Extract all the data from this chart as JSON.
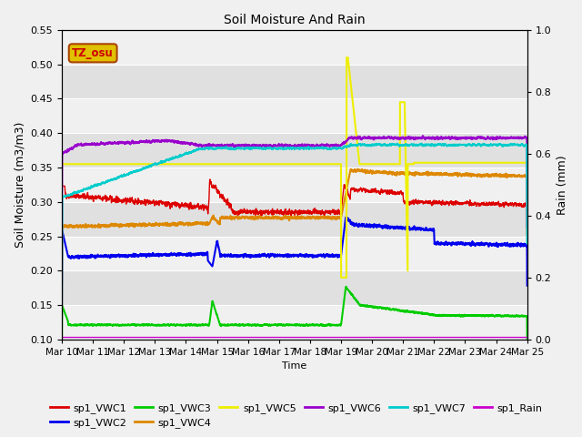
{
  "title": "Soil Moisture And Rain",
  "xlabel": "Time",
  "ylabel_left": "Soil Moisture (m3/m3)",
  "ylabel_right": "Rain (mm)",
  "ylim_left": [
    0.1,
    0.55
  ],
  "ylim_right": [
    0.0,
    1.0
  ],
  "fig_bg": "#f0f0f0",
  "plot_bg": "#e8e8e8",
  "annotation_text": "TZ_osu",
  "annotation_bg": "#e0c000",
  "annotation_border": "#aa4400",
  "x_tick_labels": [
    "Mar 10",
    "Mar 11",
    "Mar 12",
    "Mar 13",
    "Mar 14",
    "Mar 15",
    "Mar 16",
    "Mar 17",
    "Mar 18",
    "Mar 19",
    "Mar 20",
    "Mar 21",
    "Mar 22",
    "Mar 23",
    "Mar 24",
    "Mar 25"
  ],
  "colors": {
    "vwc1": "#dd0000",
    "vwc2": "#0000ee",
    "vwc3": "#00cc00",
    "vwc4": "#dd8800",
    "vwc5": "#eeee00",
    "vwc6": "#9900cc",
    "vwc7": "#00cccc",
    "rain": "#cc00cc"
  },
  "band_colors": [
    "#f0f0f0",
    "#e0e0e0"
  ]
}
